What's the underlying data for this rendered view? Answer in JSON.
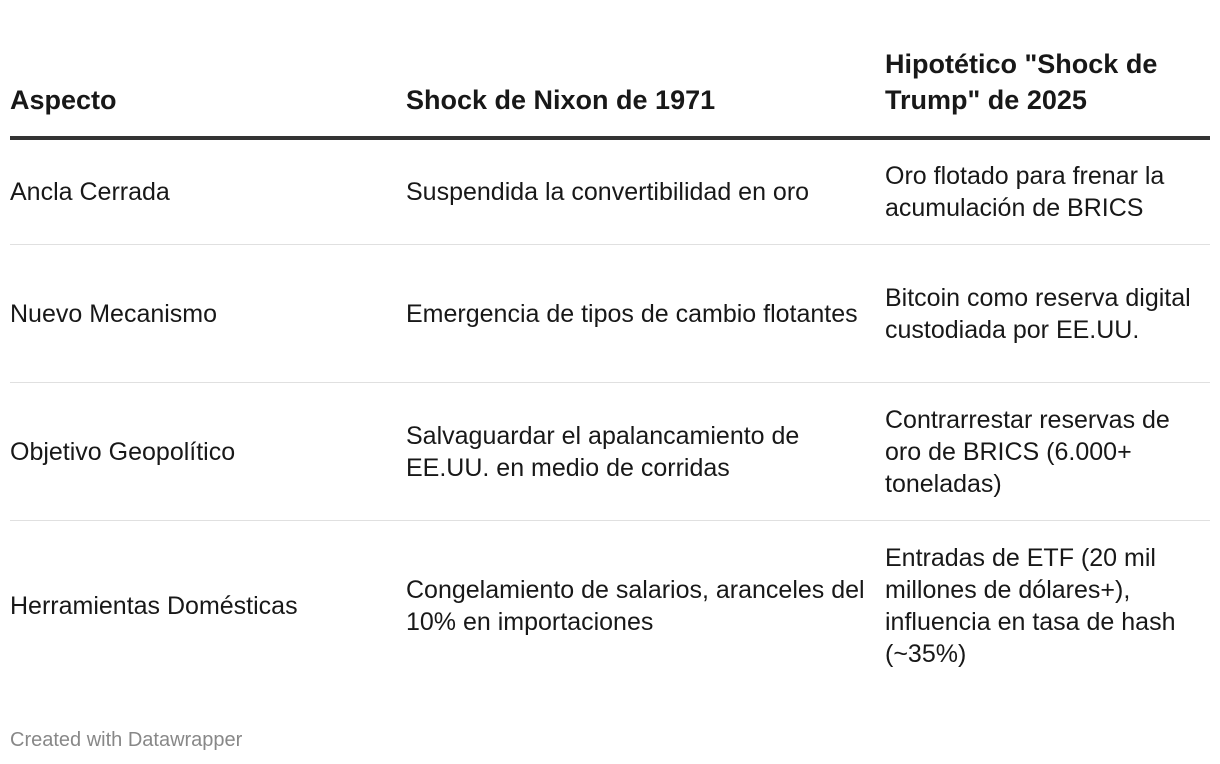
{
  "table": {
    "headers": [
      "Aspecto",
      "Shock de Nixon de 1971",
      "Hipotético \"Shock de Trump\" de 2025"
    ],
    "rows": [
      [
        "Ancla Cerrada",
        "Suspendida la convertibilidad en oro",
        "Oro flotado para frenar la acumulación de BRICS"
      ],
      [
        "Nuevo Mecanismo",
        "Emergencia de tipos de cambio flotantes",
        "Bitcoin como reserva digital custodiada por EE.UU."
      ],
      [
        "Objetivo Geopolítico",
        "Salvaguardar el apalancamiento de EE.UU. en medio de corridas",
        "Contrarrestar reservas de oro de BRICS (6.000+ toneladas)"
      ],
      [
        "Herramientas Domésticas",
        "Congelamiento de salarios, aranceles del 10% en importaciones",
        "Entradas de ETF (20 mil millones de dólares+), influencia en tasa de hash (~35%)"
      ]
    ]
  },
  "footer": {
    "credit": "Created with Datawrapper"
  }
}
